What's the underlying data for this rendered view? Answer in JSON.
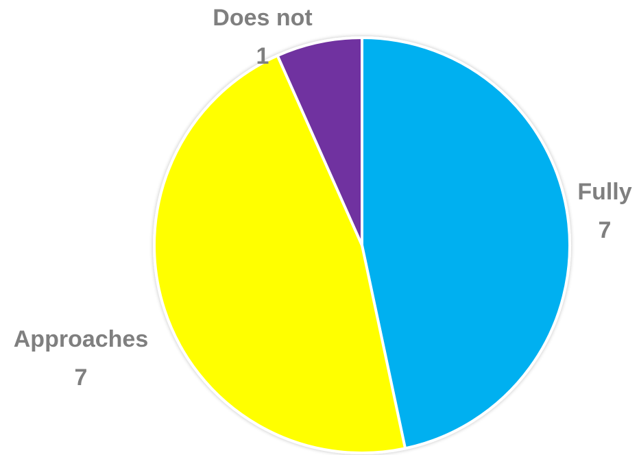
{
  "chart_data": {
    "type": "pie",
    "title": "",
    "start_angle_deg": 0,
    "direction": "clockwise",
    "legend": "none",
    "slices": [
      {
        "label": "Fully",
        "value": 7,
        "color": "#00b0f0"
      },
      {
        "label": "Approaches",
        "value": 7,
        "color": "#ffff00"
      },
      {
        "label": "Does not",
        "value": 1,
        "color": "#7030a0"
      }
    ],
    "label_color": "#7f7f7f"
  }
}
